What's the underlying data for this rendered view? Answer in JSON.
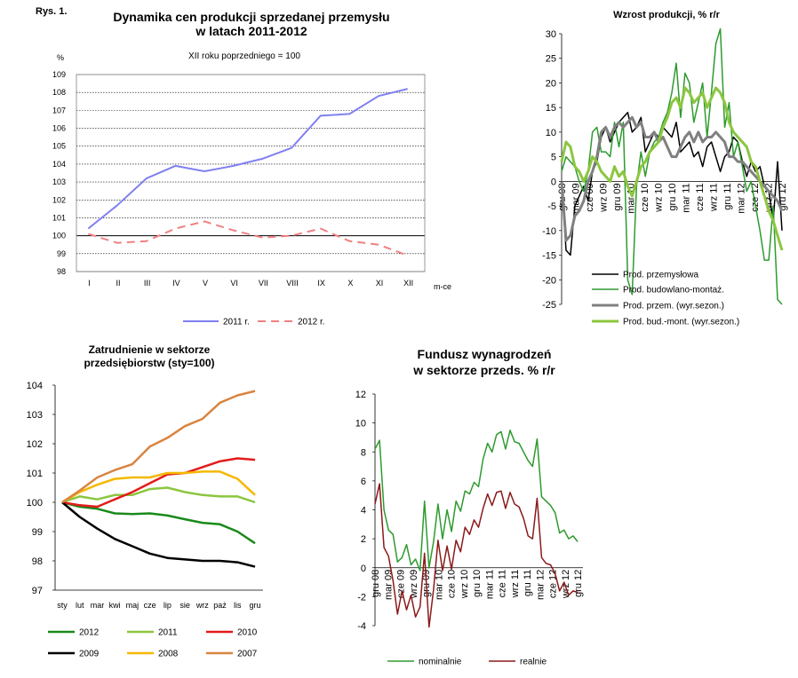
{
  "figure_label": "Rys. 1.",
  "colors": {
    "blue": "#8080f0",
    "pink": "#f08080",
    "black": "#000000",
    "dgreen": "#1a8a1a",
    "lgreen": "#8cc63f",
    "gray": "#808080",
    "red": "#e31b1b",
    "orange": "#f5b800",
    "brown": "#d98440",
    "maroon": "#8b1a1a",
    "green2": "#2e9a2e"
  },
  "chart_data": [
    {
      "type": "line",
      "title": "Dynamika cen produkcji sprzedanej przemysłu",
      "title2": "w latach 2011-2012",
      "subtitle": "XII roku poprzedniego = 100",
      "ylabel": "%",
      "xlabel": "m-ce",
      "ylim": [
        98,
        109
      ],
      "yticks": [
        "98",
        "99",
        "100",
        "101",
        "102",
        "103",
        "104",
        "105",
        "106",
        "107",
        "108",
        "109"
      ],
      "categories": [
        "I",
        "II",
        "III",
        "IV",
        "V",
        "VI",
        "VII",
        "VIII",
        "IX",
        "X",
        "XI",
        "XII"
      ],
      "series": [
        {
          "name": "2011 r.",
          "values": [
            100.4,
            101.7,
            103.2,
            103.9,
            103.6,
            103.9,
            104.3,
            104.9,
            106.7,
            106.8,
            107.8,
            108.2
          ]
        },
        {
          "name": "2012 r.",
          "values": [
            100.1,
            99.6,
            99.7,
            100.4,
            100.8,
            100.3,
            99.9,
            100.0,
            100.4,
            99.7,
            99.5,
            98.9
          ]
        }
      ],
      "legend_position": "bottom"
    },
    {
      "type": "line",
      "title": "Wzrost produkcji, % r/r",
      "ylim": [
        -25,
        30
      ],
      "yticks": [
        "-25",
        "-20",
        "-15",
        "-10",
        "-5",
        "0",
        "5",
        "10",
        "15",
        "20",
        "25",
        "30"
      ],
      "xticks": [
        "gru 08",
        "mar 09",
        "cze 09",
        "wrz 09",
        "gru 09",
        "mar 10",
        "cze 10",
        "wrz 10",
        "gru 10",
        "mar 11",
        "cze 11",
        "wrz 11",
        "gru 11",
        "mar 12",
        "cze 12",
        "wrz 12",
        "gru 12"
      ],
      "series": [
        {
          "name": "Prod. przemysłowa",
          "values": [
            0,
            -14,
            -15,
            -5,
            -3,
            -1,
            -4,
            2,
            4,
            9,
            11,
            8,
            10,
            12,
            13,
            14,
            10,
            11,
            13,
            6,
            8,
            10,
            9,
            11,
            10,
            9,
            12,
            6,
            7,
            8,
            5,
            6,
            3,
            7,
            8,
            5,
            2,
            5,
            6,
            9,
            8,
            4,
            1,
            4,
            2,
            3,
            -1,
            -2,
            -8,
            4,
            -10
          ]
        },
        {
          "name": "Prod. budowlano-montaż.",
          "values": [
            2,
            5,
            4,
            3,
            0,
            -2,
            2,
            10,
            11,
            6,
            6,
            5,
            12,
            7,
            12,
            -20,
            -23,
            -1,
            6,
            1,
            6,
            8,
            9,
            12,
            14,
            18,
            24,
            13,
            22,
            20,
            12,
            16,
            20,
            9,
            18,
            28,
            31,
            11,
            16,
            5,
            8,
            3,
            -2,
            0,
            -5,
            -10,
            -16,
            -16,
            -5,
            -24,
            -25
          ]
        },
        {
          "name": "Prod. przem. (wyr.sezon.)",
          "values": [
            0,
            -12,
            -11,
            -7,
            -6,
            -4,
            0,
            2,
            5,
            10,
            11,
            9,
            11,
            12,
            11,
            12,
            13,
            11,
            12,
            9,
            9,
            10,
            8,
            9,
            7,
            5,
            5,
            7,
            9,
            10,
            8,
            10,
            8,
            9,
            9,
            10,
            9,
            8,
            5,
            5,
            4,
            4,
            3,
            2,
            1,
            0,
            -1,
            -2,
            -3,
            -4,
            -6
          ]
        },
        {
          "name": "Prod. bud.-mont. (wyr.sezon.)",
          "values": [
            4,
            8,
            7,
            3,
            2,
            0,
            2,
            5,
            4,
            2,
            1,
            0,
            3,
            1,
            2,
            -1,
            -3,
            0,
            3,
            4,
            6,
            7,
            8,
            11,
            13,
            16,
            17,
            15,
            19,
            18,
            16,
            17,
            18,
            15,
            17,
            19,
            18,
            16,
            12,
            10,
            9,
            8,
            7,
            4,
            3,
            0,
            -3,
            -6,
            -8,
            -11,
            -14
          ]
        }
      ],
      "legend_position": "bottom"
    },
    {
      "type": "line",
      "title": "Zatrudnienie w sektorze",
      "title2": "przedsiębiorstw (sty=100)",
      "ylim": [
        97,
        104
      ],
      "yticks": [
        "97",
        "98",
        "99",
        "100",
        "101",
        "102",
        "103",
        "104"
      ],
      "categories": [
        "sty",
        "lut",
        "mar",
        "kwi",
        "maj",
        "cze",
        "lip",
        "sie",
        "wrz",
        "paź",
        "lis",
        "gru"
      ],
      "series": [
        {
          "name": "2012",
          "values": [
            100,
            99.85,
            99.78,
            99.62,
            99.6,
            99.62,
            99.55,
            99.42,
            99.3,
            99.25,
            99.0,
            98.6
          ]
        },
        {
          "name": "2011",
          "values": [
            100,
            100.2,
            100.1,
            100.25,
            100.25,
            100.45,
            100.5,
            100.35,
            100.25,
            100.2,
            100.2,
            100.0
          ]
        },
        {
          "name": "2010",
          "values": [
            100,
            99.9,
            99.85,
            100.1,
            100.35,
            100.65,
            100.95,
            101.0,
            101.2,
            101.4,
            101.5,
            101.45
          ]
        },
        {
          "name": "2009",
          "values": [
            100,
            99.5,
            99.1,
            98.75,
            98.5,
            98.25,
            98.1,
            98.05,
            98.0,
            98.0,
            97.95,
            97.8
          ]
        },
        {
          "name": "2008",
          "values": [
            100,
            100.35,
            100.6,
            100.8,
            100.85,
            100.85,
            101.0,
            101.0,
            101.05,
            101.05,
            100.8,
            100.25
          ]
        },
        {
          "name": "2007",
          "values": [
            100,
            100.4,
            100.85,
            101.1,
            101.3,
            101.9,
            102.2,
            102.6,
            102.85,
            103.4,
            103.65,
            103.8
          ]
        }
      ],
      "legend_position": "bottom"
    },
    {
      "type": "line",
      "title": "Fundusz wynagrodzeń",
      "title2": "w sektorze przeds. % r/r",
      "ylim": [
        -4,
        12
      ],
      "yticks": [
        "-4",
        "-2",
        "0",
        "2",
        "4",
        "6",
        "8",
        "10",
        "12"
      ],
      "xticks": [
        "gru 08",
        "mar 09",
        "cze 09",
        "wrz 09",
        "gru 09",
        "mar 10",
        "cze 10",
        "wrz 10",
        "gru 10",
        "mar 11",
        "cze 11",
        "wrz 11",
        "gru 11",
        "mar 12",
        "cze 12",
        "wrz 12",
        "gru 12"
      ],
      "series": [
        {
          "name": "nominalnie",
          "values": [
            8.2,
            8.8,
            4.0,
            2.6,
            2.3,
            0.4,
            0.7,
            1.6,
            0.2,
            0.6,
            -0.2,
            4.6,
            0.0,
            1.8,
            4.4,
            2.0,
            4.0,
            2.5,
            4.6,
            3.9,
            5.3,
            5.1,
            5.9,
            5.6,
            7.5,
            8.6,
            8.0,
            9.2,
            9.4,
            8.2,
            9.5,
            8.7,
            8.6,
            8.0,
            7.4,
            7.0,
            8.9,
            4.9,
            4.6,
            4.3,
            3.8,
            2.4,
            2.6,
            2.0,
            2.2,
            1.8
          ]
        },
        {
          "name": "realnie",
          "values": [
            4.4,
            5.8,
            1.4,
            0.8,
            -0.9,
            -3.2,
            -1.6,
            -2.9,
            -1.9,
            -3.4,
            -2.7,
            1.0,
            -4.1,
            -1.5,
            1.9,
            -0.2,
            1.5,
            -0.1,
            1.9,
            1.1,
            2.8,
            2.3,
            3.3,
            2.8,
            4.1,
            5.1,
            4.3,
            5.2,
            5.3,
            4.1,
            5.2,
            4.4,
            4.2,
            3.4,
            2.2,
            2.0,
            4.8,
            0.7,
            0.3,
            0.2,
            -0.4,
            -1.6,
            -1.0,
            -1.9,
            -1.6,
            -1.7
          ]
        }
      ],
      "legend_position": "bottom"
    }
  ]
}
